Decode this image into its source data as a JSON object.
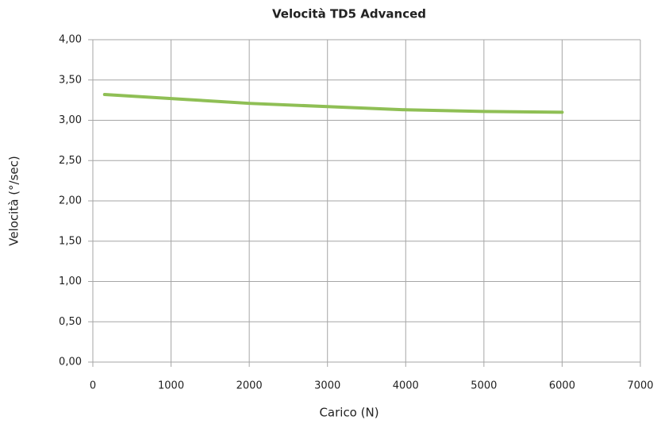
{
  "chart_data": {
    "type": "line",
    "title": "Velocità TD5 Advanced",
    "xlabel": "Carico (N)",
    "ylabel": "Velocità (°/sec)",
    "x": [
      150,
      1000,
      2000,
      3000,
      4000,
      5000,
      6000
    ],
    "values": [
      3.32,
      3.27,
      3.21,
      3.17,
      3.13,
      3.11,
      3.1
    ],
    "color": "#8fbf55",
    "xlim": [
      0,
      7000
    ],
    "xticks": [
      0,
      1000,
      2000,
      3000,
      4000,
      5000,
      6000,
      7000
    ],
    "ylim": [
      0,
      4
    ],
    "yticks": [
      {
        "value": 0,
        "label": "0,00"
      },
      {
        "value": 0.5,
        "label": "0,50"
      },
      {
        "value": 1,
        "label": "1,00"
      },
      {
        "value": 1.5,
        "label": "1,50"
      },
      {
        "value": 2,
        "label": "2,00"
      },
      {
        "value": 2.5,
        "label": "2,50"
      },
      {
        "value": 3,
        "label": "3,00"
      },
      {
        "value": 3.5,
        "label": "3,50"
      },
      {
        "value": 4,
        "label": "4,00"
      }
    ],
    "grid": true
  }
}
